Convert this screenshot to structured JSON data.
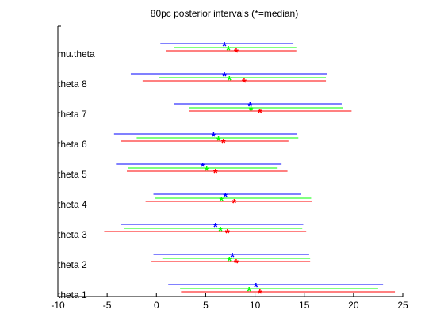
{
  "chart_data": {
    "type": "interval",
    "title": "80pc posterior intervals (*=median)",
    "xlabel": "",
    "ylabel": "",
    "xlim": [
      -10,
      25
    ],
    "xticks": [
      -10,
      -5,
      0,
      5,
      10,
      15,
      20,
      25
    ],
    "grid": false,
    "categories": [
      "theta 1",
      "theta 2",
      "theta 3",
      "theta 4",
      "theta 5",
      "theta 6",
      "theta 7",
      "theta 8",
      "mu.theta"
    ],
    "series": [
      {
        "color": "#0000ff",
        "intervals": [
          {
            "low": 1.2,
            "high": 23.0,
            "median": 10.1
          },
          {
            "low": -0.3,
            "high": 15.5,
            "median": 7.7
          },
          {
            "low": -3.6,
            "high": 14.9,
            "median": 6.0
          },
          {
            "low": -0.3,
            "high": 14.7,
            "median": 7.0
          },
          {
            "low": -4.1,
            "high": 12.7,
            "median": 4.7
          },
          {
            "low": -4.3,
            "high": 14.3,
            "median": 5.8
          },
          {
            "low": 1.8,
            "high": 18.8,
            "median": 9.5
          },
          {
            "low": -2.6,
            "high": 17.3,
            "median": 6.9
          },
          {
            "low": 0.4,
            "high": 13.9,
            "median": 6.9
          }
        ]
      },
      {
        "color": "#00ff00",
        "intervals": [
          {
            "low": 2.4,
            "high": 22.5,
            "median": 9.4
          },
          {
            "low": 0.6,
            "high": 15.6,
            "median": 7.4
          },
          {
            "low": -3.3,
            "high": 14.8,
            "median": 6.5
          },
          {
            "low": -0.1,
            "high": 15.7,
            "median": 6.6
          },
          {
            "low": -2.9,
            "high": 12.3,
            "median": 5.1
          },
          {
            "low": -2.0,
            "high": 14.4,
            "median": 6.3
          },
          {
            "low": 3.3,
            "high": 18.9,
            "median": 9.6
          },
          {
            "low": 0.3,
            "high": 17.2,
            "median": 7.4
          },
          {
            "low": 1.8,
            "high": 14.2,
            "median": 7.3
          }
        ]
      },
      {
        "color": "#ff0000",
        "intervals": [
          {
            "low": 2.5,
            "high": 24.2,
            "median": 10.5
          },
          {
            "low": -0.5,
            "high": 15.6,
            "median": 8.1
          },
          {
            "low": -5.3,
            "high": 15.2,
            "median": 7.2
          },
          {
            "low": -1.1,
            "high": 15.8,
            "median": 7.9
          },
          {
            "low": -3.0,
            "high": 13.3,
            "median": 6.0
          },
          {
            "low": -3.6,
            "high": 13.4,
            "median": 6.8
          },
          {
            "low": 3.3,
            "high": 19.8,
            "median": 10.5
          },
          {
            "low": -1.4,
            "high": 17.2,
            "median": 8.9
          },
          {
            "low": 1.0,
            "high": 14.2,
            "median": 8.1
          }
        ]
      }
    ]
  }
}
